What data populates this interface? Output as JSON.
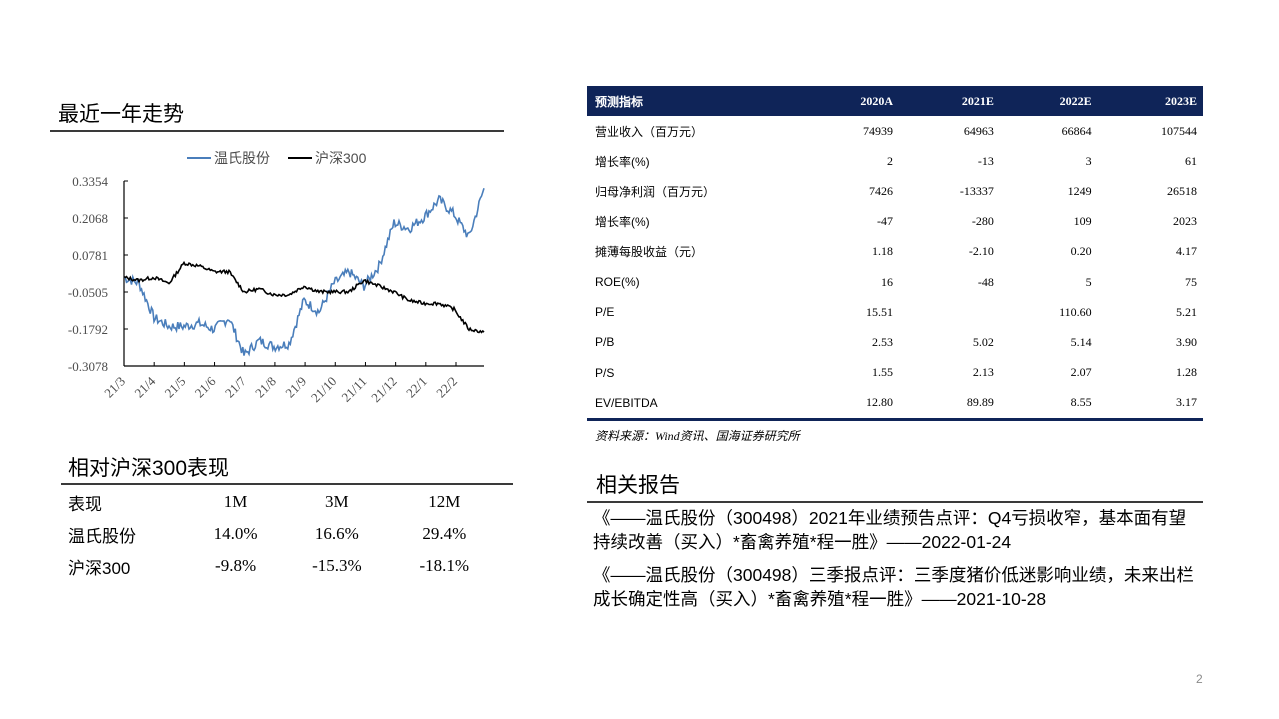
{
  "left": {
    "trend_title": "最近一年走势",
    "perf_title": "相对沪深300表现",
    "performance_table": {
      "headers": [
        "表现",
        "1M",
        "3M",
        "12M"
      ],
      "rows": [
        {
          "label": "温氏股份",
          "values": [
            "14.0%",
            "16.6%",
            "29.4%"
          ]
        },
        {
          "label": "沪深300",
          "values": [
            "-9.8%",
            "-15.3%",
            "-18.1%"
          ]
        }
      ]
    }
  },
  "chart_data": {
    "type": "line",
    "title": "最近一年走势",
    "xlabel": "",
    "ylabel": "",
    "legend": [
      "温氏股份",
      "沪深300"
    ],
    "legend_position": "top",
    "grid": false,
    "x_tick_labels": [
      "21/3",
      "21/4",
      "21/5",
      "21/6",
      "21/7",
      "21/8",
      "21/9",
      "21/10",
      "21/11",
      "21/12",
      "22/1",
      "22/2"
    ],
    "y_tick_labels": [
      "0.3354",
      "0.2068",
      "0.0781",
      "-0.0505",
      "-0.1792",
      "-0.3078"
    ],
    "ylim": [
      -0.3078,
      0.3354
    ],
    "x": [
      "21/3",
      "21/3b",
      "21/4",
      "21/4b",
      "21/5",
      "21/5b",
      "21/6",
      "21/6b",
      "21/7",
      "21/7b",
      "21/8",
      "21/8b",
      "21/9",
      "21/9b",
      "21/10",
      "21/10b",
      "21/11",
      "21/11b",
      "21/12",
      "21/12b",
      "22/1",
      "22/1b",
      "22/2",
      "22/2b",
      "end"
    ],
    "series": [
      {
        "name": "温氏股份",
        "color": "#4a7ebb",
        "values": [
          0.0,
          -0.02,
          -0.14,
          -0.17,
          -0.17,
          -0.16,
          -0.18,
          -0.14,
          -0.27,
          -0.22,
          -0.24,
          -0.23,
          -0.08,
          -0.12,
          -0.02,
          0.02,
          -0.03,
          0.04,
          0.19,
          0.17,
          0.21,
          0.27,
          0.22,
          0.14,
          0.31
        ]
      },
      {
        "name": "沪深300",
        "color": "#000000",
        "values": [
          0.0,
          -0.01,
          0.0,
          -0.02,
          0.05,
          0.04,
          0.02,
          0.02,
          -0.05,
          -0.04,
          -0.06,
          -0.06,
          -0.03,
          -0.05,
          -0.05,
          -0.05,
          -0.01,
          -0.03,
          -0.05,
          -0.08,
          -0.09,
          -0.09,
          -0.11,
          -0.18,
          -0.19
        ]
      }
    ]
  },
  "forecast_table": {
    "headers": [
      "预测指标",
      "2020A",
      "2021E",
      "2022E",
      "2023E"
    ],
    "rows": [
      {
        "label": "营业收入（百万元）",
        "values": [
          "74939",
          "64963",
          "66864",
          "107544"
        ]
      },
      {
        "label": "增长率(%)",
        "values": [
          "2",
          "-13",
          "3",
          "61"
        ]
      },
      {
        "label": "归母净利润（百万元）",
        "values": [
          "7426",
          "-13337",
          "1249",
          "26518"
        ]
      },
      {
        "label": "增长率(%)",
        "values": [
          "-47",
          "-280",
          "109",
          "2023"
        ]
      },
      {
        "label": "摊薄每股收益（元）",
        "values": [
          "1.18",
          "-2.10",
          "0.20",
          "4.17"
        ]
      },
      {
        "label": "ROE(%)",
        "values": [
          "16",
          "-48",
          "5",
          "75"
        ]
      },
      {
        "label": "P/E",
        "values": [
          "15.51",
          "",
          "110.60",
          "5.21"
        ]
      },
      {
        "label": "P/B",
        "values": [
          "2.53",
          "5.02",
          "5.14",
          "3.90"
        ]
      },
      {
        "label": "P/S",
        "values": [
          "1.55",
          "2.13",
          "2.07",
          "1.28"
        ]
      },
      {
        "label": "EV/EBITDA",
        "values": [
          "12.80",
          "89.89",
          "8.55",
          "3.17"
        ]
      }
    ],
    "source": "资料来源：Wind资讯、国海证券研究所"
  },
  "related": {
    "title": "相关报告",
    "items": [
      {
        "text": "《——温氏股份（300498）2021年业绩预告点评：Q4亏损收窄，基本面有望持续改善（买入）*畜禽养殖*程一胜》——2022-01-24"
      },
      {
        "text": "《——温氏股份（300498）三季报点评：三季度猪价低迷影响业绩，未来出栏成长确定性高（买入）*畜禽养殖*程一胜》——2021-10-28"
      }
    ]
  },
  "colors": {
    "header_navy": "#0f2458",
    "series_blue": "#4a7ebb",
    "series_black": "#000000",
    "axis_label": "#4d4d4d"
  },
  "page": {
    "number": "2"
  }
}
